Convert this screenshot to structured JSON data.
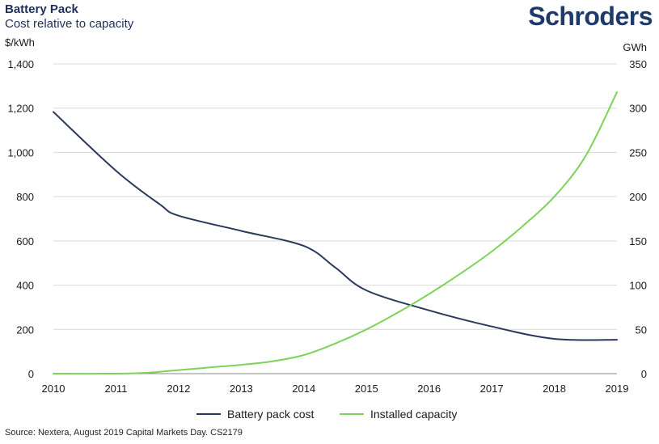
{
  "header": {
    "title": "Battery Pack",
    "subtitle": "Cost relative to capacity",
    "logo": "Schroders"
  },
  "footer": {
    "source": "Source: Nextera, August 2019 Capital Markets Day. CS2179"
  },
  "chart_data": {
    "type": "line",
    "title": "Battery Pack",
    "subtitle": "Cost relative to capacity",
    "x": [
      2010,
      2011,
      2012,
      2013,
      2014,
      2015,
      2016,
      2017,
      2018,
      2019
    ],
    "x_ticks": [
      "2010",
      "2011",
      "2012",
      "2013",
      "2014",
      "2015",
      "2016",
      "2017",
      "2018",
      "2019"
    ],
    "y_left": {
      "unit": "$/kWh",
      "range": [
        0,
        1400
      ],
      "ticks": [
        "0",
        "200",
        "400",
        "600",
        "800",
        "1,000",
        "1,200",
        "1,400"
      ]
    },
    "y_right": {
      "unit": "GWh",
      "range": [
        0,
        350
      ],
      "ticks": [
        "0",
        "50",
        "100",
        "150",
        "200",
        "250",
        "300",
        "350"
      ]
    },
    "series": [
      {
        "name": "Battery pack cost",
        "axis": "left",
        "color": "#2b3a5c",
        "x": [
          2010,
          2011,
          2011.7,
          2012,
          2013,
          2014,
          2014.5,
          2015,
          2016,
          2017,
          2018,
          2019
        ],
        "values": [
          1183,
          917,
          765,
          714,
          645,
          577,
          480,
          376,
          286,
          213,
          157,
          153
        ]
      },
      {
        "name": "Installed capacity",
        "axis": "right",
        "color": "#7dd35a",
        "x": [
          2010,
          2011,
          2011.5,
          2012,
          2012.5,
          2013,
          2013.5,
          2014,
          2014.5,
          2015,
          2015.5,
          2016,
          2016.5,
          2017,
          2017.5,
          2018,
          2018.5,
          2019
        ],
        "values": [
          0,
          0,
          1,
          4,
          7,
          10,
          14,
          21,
          34,
          50,
          69,
          90,
          113,
          138,
          167,
          200,
          246,
          318
        ]
      }
    ],
    "grid": true,
    "legend_position": "bottom"
  }
}
